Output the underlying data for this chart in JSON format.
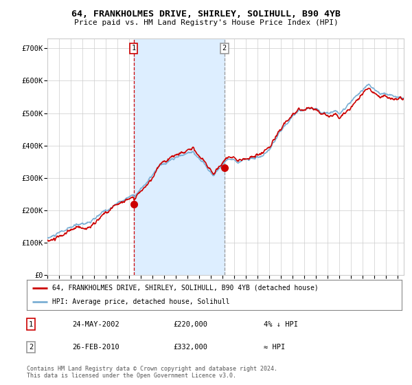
{
  "title": "64, FRANKHOLMES DRIVE, SHIRLEY, SOLIHULL, B90 4YB",
  "subtitle": "Price paid vs. HM Land Registry's House Price Index (HPI)",
  "ylabel_ticks": [
    "£0",
    "£100K",
    "£200K",
    "£300K",
    "£400K",
    "£500K",
    "£600K",
    "£700K"
  ],
  "ylim": [
    0,
    730000
  ],
  "xlim_start": 1995.0,
  "xlim_end": 2025.5,
  "sale1_x": 2002.39,
  "sale1_y": 220000,
  "sale2_x": 2010.15,
  "sale2_y": 332000,
  "shade_x1": 2002.39,
  "shade_x2": 2010.15,
  "hpi_color": "#7bafd4",
  "price_color": "#cc0000",
  "shade_color": "#ddeeff",
  "vline1_color": "#cc0000",
  "vline2_color": "#999999",
  "legend_label1": "64, FRANKHOLMES DRIVE, SHIRLEY, SOLIHULL, B90 4YB (detached house)",
  "legend_label2": "HPI: Average price, detached house, Solihull",
  "table_rows": [
    [
      "1",
      "24-MAY-2002",
      "£220,000",
      "4% ↓ HPI"
    ],
    [
      "2",
      "26-FEB-2010",
      "£332,000",
      "≈ HPI"
    ]
  ],
  "footer": "Contains HM Land Registry data © Crown copyright and database right 2024.\nThis data is licensed under the Open Government Licence v3.0.",
  "background_color": "#ffffff",
  "grid_color": "#cccccc"
}
